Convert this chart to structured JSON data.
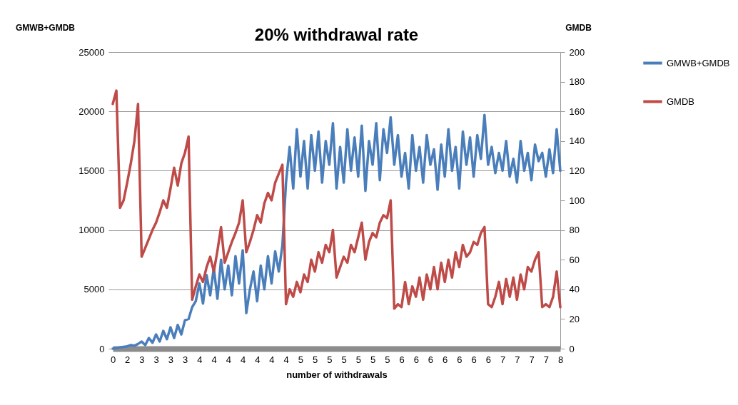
{
  "chart_data": {
    "type": "line",
    "title": "20% withdrawal rate",
    "xlabel": "number of withdrawals",
    "ylabel": "GMWB+GMDB",
    "y2label": "GMDB",
    "categories": [
      "0",
      null,
      null,
      null,
      "2",
      null,
      null,
      null,
      "3",
      null,
      null,
      null,
      "3",
      null,
      null,
      null,
      "3",
      null,
      null,
      null,
      "3",
      null,
      null,
      null,
      "4",
      null,
      null,
      null,
      "4",
      null,
      null,
      null,
      "4",
      null,
      null,
      null,
      "4",
      null,
      null,
      null,
      "4",
      null,
      null,
      null,
      "4",
      null,
      null,
      null,
      "4",
      null,
      null,
      null,
      "5",
      null,
      null,
      null,
      "5",
      null,
      null,
      null,
      "5",
      null,
      null,
      null,
      "5",
      null,
      null,
      null,
      "5",
      null,
      null,
      null,
      "5",
      null,
      null,
      null,
      "5",
      null,
      null,
      null,
      "6",
      null,
      null,
      null,
      "6",
      null,
      null,
      null,
      "6",
      null,
      null,
      null,
      "6",
      null,
      null,
      null,
      "6",
      null,
      null,
      null,
      "6",
      null,
      null,
      null,
      "6",
      null,
      null,
      null,
      "7",
      null,
      null,
      null,
      "7",
      null,
      null,
      null,
      "7",
      null,
      null,
      null,
      "7",
      null,
      null,
      null,
      "8"
    ],
    "series": [
      {
        "name": "GMWB+GMDB",
        "color": "#4a7ebb",
        "values": [
          0,
          50,
          100,
          150,
          200,
          300,
          250,
          400,
          600,
          300,
          900,
          500,
          1200,
          600,
          1500,
          800,
          1800,
          900,
          2000,
          1200,
          2400,
          2500,
          3500,
          4000,
          5500,
          3800,
          6200,
          4500,
          6800,
          4200,
          7500,
          5000,
          7000,
          4500,
          7800,
          5500,
          8300,
          3000,
          5000,
          6500,
          4000,
          7000,
          5000,
          7800,
          5500,
          8200,
          6500,
          8700,
          14000,
          17000,
          13500,
          18500,
          14500,
          17500,
          13500,
          18000,
          15000,
          18300,
          14000,
          17500,
          15500,
          19000,
          13500,
          17000,
          14000,
          18500,
          15000,
          17800,
          14500,
          18800,
          13300,
          17500,
          15500,
          19000,
          14200,
          18500,
          16500,
          19500,
          15500,
          18000,
          14500,
          16500,
          13500,
          18000,
          15000,
          17000,
          14000,
          18000,
          15500,
          16800,
          13400,
          17200,
          14500,
          18500,
          15000,
          17000,
          13500,
          18300,
          15500,
          17800,
          14500,
          18000,
          16000,
          19700,
          15500,
          17000,
          14800,
          16500,
          15000,
          17500,
          14500,
          16000,
          14000,
          17500,
          15000,
          16500,
          14200,
          17200,
          15800,
          16500,
          14500,
          16800,
          14800,
          18500,
          15000
        ]
      },
      {
        "name": "GMDB",
        "color": "#be4b48",
        "axis": "y2",
        "values": [
          165,
          174,
          95,
          100,
          112,
          125,
          140,
          165,
          62,
          68,
          74,
          80,
          85,
          92,
          100,
          95,
          108,
          122,
          110,
          125,
          132,
          143,
          33,
          42,
          50,
          45,
          55,
          62,
          52,
          66,
          82,
          58,
          65,
          72,
          78,
          85,
          100,
          65,
          72,
          80,
          90,
          85,
          98,
          105,
          100,
          112,
          118,
          124,
          30,
          40,
          35,
          45,
          38,
          50,
          45,
          60,
          52,
          65,
          58,
          70,
          65,
          80,
          48,
          55,
          62,
          58,
          70,
          65,
          75,
          85,
          60,
          72,
          78,
          75,
          85,
          90,
          88,
          100,
          27,
          30,
          28,
          45,
          30,
          42,
          35,
          48,
          33,
          50,
          40,
          55,
          40,
          58,
          45,
          60,
          48,
          65,
          55,
          70,
          62,
          65,
          72,
          70,
          78,
          82,
          30,
          28,
          35,
          45,
          30,
          47,
          35,
          48,
          33,
          50,
          40,
          55,
          52,
          60,
          65,
          28,
          30,
          28,
          35,
          52,
          28
        ]
      }
    ],
    "ylim": [
      0,
      25000
    ],
    "yticks": [
      0,
      5000,
      10000,
      15000,
      20000,
      25000
    ],
    "y2lim": [
      0,
      200
    ],
    "y2ticks": [
      0,
      20,
      40,
      60,
      80,
      100,
      120,
      140,
      160,
      180,
      200
    ],
    "grid": "y",
    "legend": "right"
  }
}
